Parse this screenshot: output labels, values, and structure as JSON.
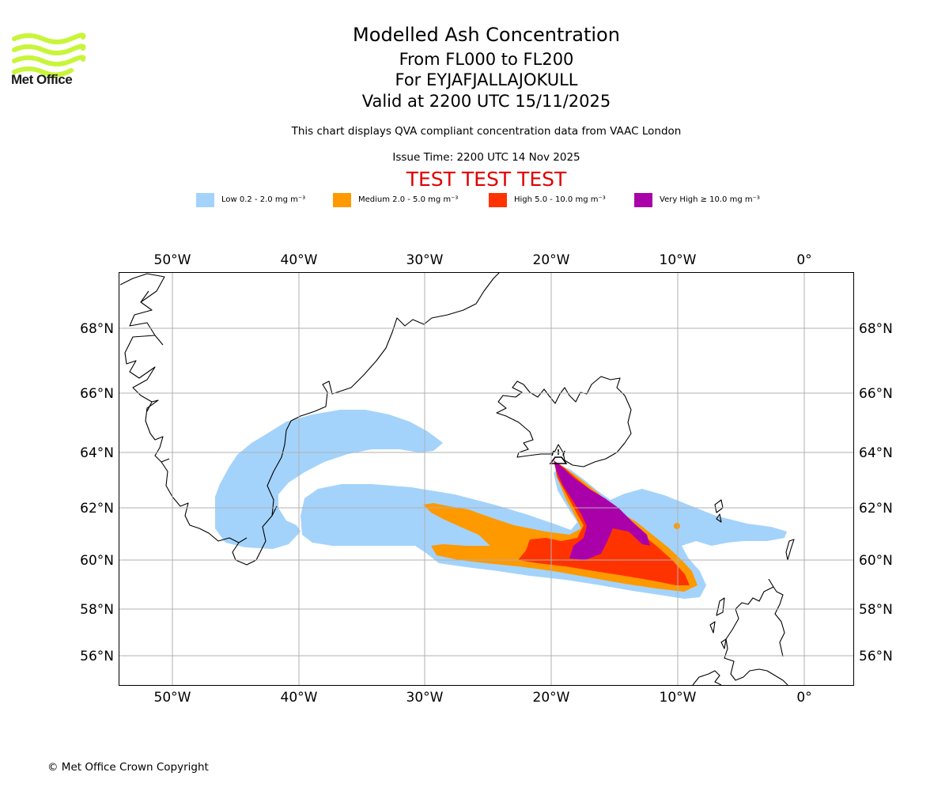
{
  "branding": {
    "logo_text": "Met Office",
    "copyright": "© Met Office Crown Copyright"
  },
  "header": {
    "title": "Modelled Ash Concentration",
    "levels": "From FL000 to FL200",
    "volcano": "For EYJAFJALLAJOKULL",
    "valid": "Valid at 2200 UTC 15/11/2025",
    "subtitle": "This chart displays QVA compliant concentration data from VAAC London",
    "issue_time": "Issue Time: 2200 UTC 14 Nov 2025",
    "test_banner": "TEST TEST TEST"
  },
  "legend": [
    {
      "label": "Low 0.2 - 2.0 mg m⁻³",
      "color": "#a3d3fb"
    },
    {
      "label": "Medium 2.0 - 5.0 mg m⁻³",
      "color": "#ff9900"
    },
    {
      "label": "High 5.0 - 10.0 mg m⁻³",
      "color": "#ff3300"
    },
    {
      "label": "Very High ≥ 10.0 mg m⁻³",
      "color": "#aa00aa"
    }
  ],
  "map": {
    "lon_labels": [
      "50°W",
      "40°W",
      "30°W",
      "20°W",
      "10°W",
      "0°"
    ],
    "lat_labels": [
      "68°N",
      "66°N",
      "64°N",
      "62°N",
      "60°N",
      "58°N",
      "56°N"
    ],
    "gridline_color": "#b0b0b0",
    "coast_color": "#000000",
    "volcano_marker": "volcano-icon"
  }
}
